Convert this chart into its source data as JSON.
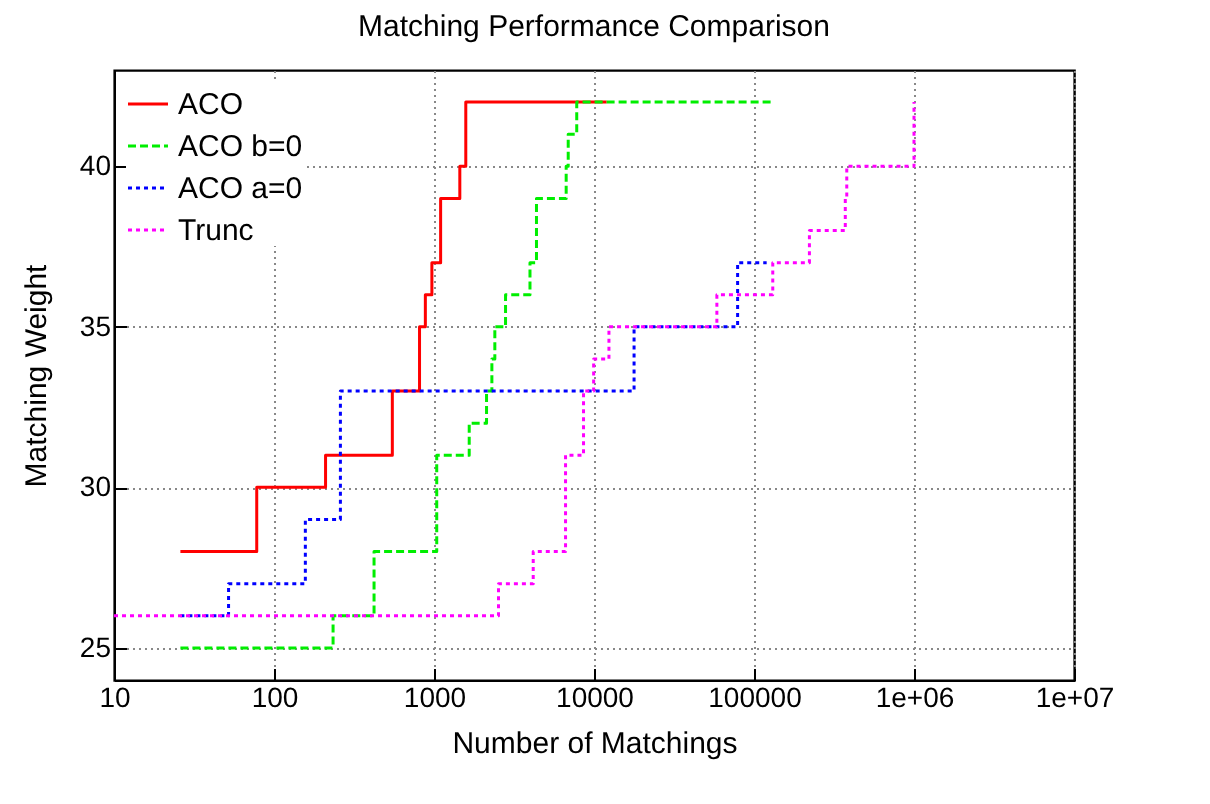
{
  "chart_data": {
    "type": "step",
    "title": "Matching Performance Comparison",
    "xlabel": "Number of Matchings",
    "ylabel": "Matching Weight",
    "log": "x",
    "grid": true,
    "legend": "top left",
    "xlim": [
      10,
      10000000
    ],
    "ylim": [
      24,
      43
    ],
    "xticks": [
      10,
      100,
      1000,
      10000,
      100000,
      {
        "value": 1000000,
        "label": "1e+06"
      },
      {
        "value": 10000000,
        "label": "1e+07"
      }
    ],
    "yticks": [
      25,
      30,
      35,
      40
    ],
    "series": [
      {
        "name": "ACO",
        "color": "#ff0000",
        "line_style": "solid",
        "x": [
          26,
          78,
          210,
          549,
          812,
          883,
          970,
          1100,
          1450,
          1580,
          12000
        ],
        "values": [
          28,
          30,
          31,
          33,
          35,
          36,
          37,
          39,
          40,
          42,
          42
        ]
      },
      {
        "name": "ACO b=0",
        "color": "#00ee00",
        "line_style": "dashed",
        "x": [
          26,
          234,
          422,
          1040,
          1660,
          2130,
          2300,
          2400,
          2800,
          3980,
          4370,
          6700,
          6900,
          7800,
          130000
        ],
        "values": [
          25,
          26,
          28,
          31,
          32,
          33,
          34,
          35,
          36,
          37,
          39,
          40,
          41,
          42,
          42
        ]
      },
      {
        "name": "ACO a=0",
        "color": "#0000ff",
        "line_style": "dotted",
        "x": [
          26,
          52,
          157,
          260,
          17800,
          79000,
          120000
        ],
        "values": [
          26,
          27,
          29,
          33,
          35,
          37,
          37
        ]
      },
      {
        "name": "Trunc",
        "color": "#ff00ff",
        "line_style": "dotted",
        "x": [
          10,
          2530,
          4170,
          6640,
          8600,
          9950,
          12400,
          58600,
          131000,
          222000,
          372000,
          380000,
          1000000
        ],
        "values": [
          26,
          27,
          28,
          31,
          33,
          34,
          35,
          36,
          37,
          38,
          39,
          40,
          42
        ]
      }
    ]
  }
}
